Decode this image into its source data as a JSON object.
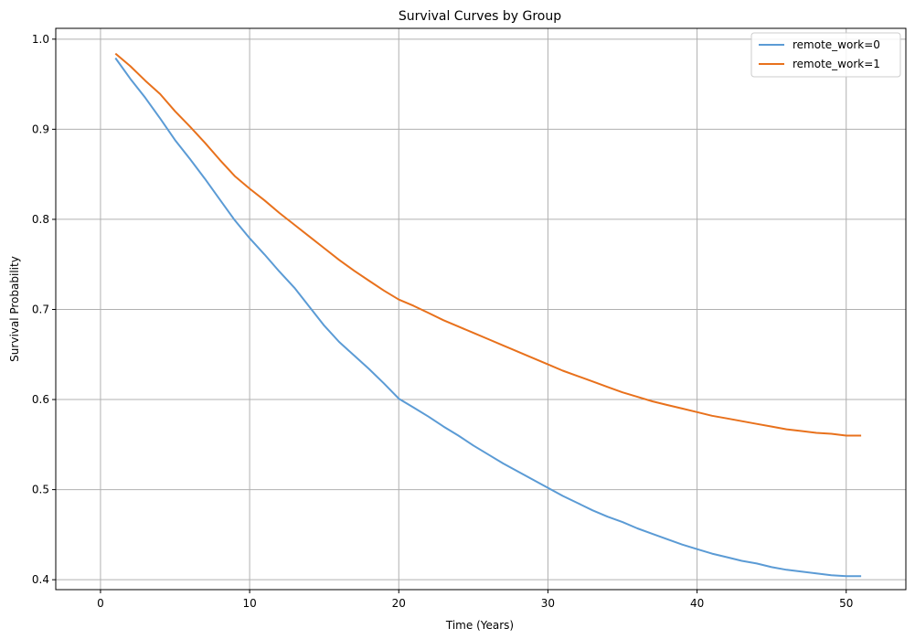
{
  "chart_data": {
    "type": "line",
    "title": "Survival Curves by Group",
    "xlabel": "Time (Years)",
    "ylabel": "Survival Probability",
    "xlim": [
      -3.0,
      54.0
    ],
    "ylim": [
      0.389,
      1.012
    ],
    "xticks": [
      0,
      10,
      20,
      30,
      40,
      50
    ],
    "yticks": [
      0.4,
      0.5,
      0.6,
      0.7,
      0.8,
      0.9,
      1.0
    ],
    "xtick_labels": [
      "0",
      "10",
      "20",
      "30",
      "40",
      "50"
    ],
    "ytick_labels": [
      "0.4",
      "0.5",
      "0.6",
      "0.7",
      "0.8",
      "0.9",
      "1.0"
    ],
    "grid": true,
    "legend_position": "top-right",
    "x": [
      1,
      2,
      3,
      4,
      5,
      6,
      7,
      8,
      9,
      10,
      11,
      12,
      13,
      14,
      15,
      16,
      17,
      18,
      19,
      20,
      21,
      22,
      23,
      24,
      25,
      26,
      27,
      28,
      29,
      30,
      31,
      32,
      33,
      34,
      35,
      36,
      37,
      38,
      39,
      40,
      41,
      42,
      43,
      44,
      45,
      46,
      47,
      48,
      49,
      50,
      51
    ],
    "series": [
      {
        "name": "remote_work=0",
        "color": "#5b9bd5",
        "values": [
          0.979,
          0.956,
          0.935,
          0.912,
          0.888,
          0.867,
          0.845,
          0.822,
          0.799,
          0.779,
          0.761,
          0.742,
          0.724,
          0.703,
          0.682,
          0.664,
          0.649,
          0.634,
          0.618,
          0.601,
          0.591,
          0.581,
          0.57,
          0.56,
          0.549,
          0.539,
          0.529,
          0.52,
          0.511,
          0.502,
          0.493,
          0.485,
          0.477,
          0.47,
          0.464,
          0.457,
          0.451,
          0.445,
          0.439,
          0.434,
          0.429,
          0.425,
          0.421,
          0.418,
          0.414,
          0.411,
          0.409,
          0.407,
          0.405,
          0.404,
          0.404
        ]
      },
      {
        "name": "remote_work=1",
        "color": "#e8711c",
        "values": [
          0.984,
          0.97,
          0.954,
          0.939,
          0.92,
          0.903,
          0.885,
          0.866,
          0.848,
          0.834,
          0.821,
          0.807,
          0.794,
          0.781,
          0.768,
          0.755,
          0.743,
          0.732,
          0.721,
          0.711,
          0.704,
          0.696,
          0.688,
          0.681,
          0.674,
          0.667,
          0.66,
          0.653,
          0.646,
          0.639,
          0.632,
          0.626,
          0.62,
          0.614,
          0.608,
          0.603,
          0.598,
          0.594,
          0.59,
          0.586,
          0.582,
          0.579,
          0.576,
          0.573,
          0.57,
          0.567,
          0.565,
          0.563,
          0.562,
          0.56,
          0.56
        ]
      }
    ]
  }
}
